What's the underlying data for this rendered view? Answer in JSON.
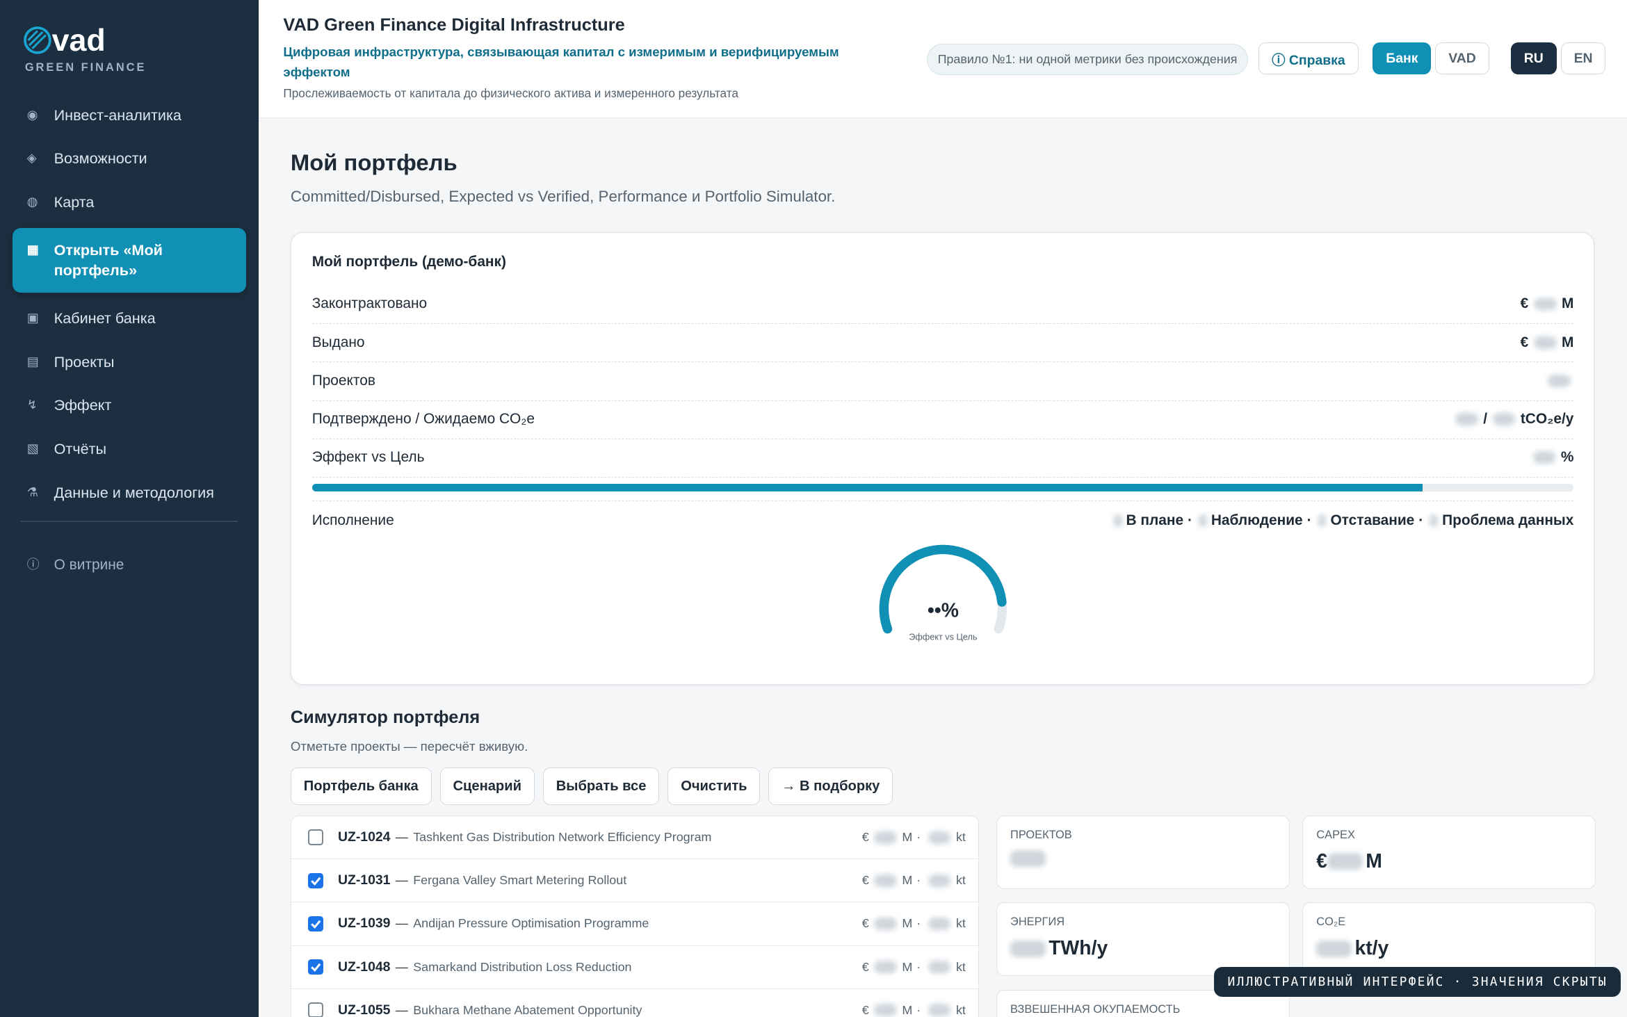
{
  "sidebar": {
    "logo": "vad",
    "tagline": "GREEN FINANCE",
    "nav": [
      {
        "icon": "◉",
        "label": "Инвест-аналитика",
        "active": false
      },
      {
        "icon": "◈",
        "label": "Возможности",
        "active": false
      },
      {
        "icon": "◍",
        "label": "Карта",
        "active": false
      },
      {
        "icon": "▦",
        "label": "Открыть «Мой портфель»",
        "active": true
      },
      {
        "icon": "▣",
        "label": "Кабинет банка",
        "active": false
      },
      {
        "icon": "▤",
        "label": "Проекты",
        "active": false
      },
      {
        "icon": "↯",
        "label": "Эффект",
        "active": false
      },
      {
        "icon": "▧",
        "label": "Отчёты",
        "active": false
      },
      {
        "icon": "⚗",
        "label": "Данные и методология",
        "active": false
      }
    ],
    "about": {
      "icon": "ⓘ",
      "label": "О витрине"
    }
  },
  "header": {
    "title": "VAD Green Finance Digital Infrastructure",
    "subtitle": "Цифровая инфраструктура, связывающая капитал с измеримым и верифицируемым эффектом",
    "caption": "Прослеживаемость от капитала до физического актива и измеренного результата",
    "rule": "Правило №1: ни одной метрики без происхождения",
    "help": "ⓘ Справка",
    "roles": [
      "Банк",
      "VAD"
    ],
    "active_role": 0,
    "languages": [
      "RU",
      "EN"
    ],
    "active_language": 0
  },
  "page": {
    "title": "Мой портфель",
    "subtitle": "Committed/Disbursed, Expected vs Verified, Performance и Portfolio Simulator."
  },
  "portfolio": {
    "title": "Мой портфель (демо-банк)",
    "rows": [
      {
        "label": "Законтрактовано",
        "prefix": "€",
        "suffix": "M"
      },
      {
        "label": "Выдано",
        "prefix": "€",
        "suffix": "M"
      },
      {
        "label": "Проектов"
      },
      {
        "label": "Подтверждено / Ожидаемо CO₂e",
        "separator": "/",
        "suffix": "tCO₂e/y"
      },
      {
        "label": "Эффект vs Цель",
        "suffix": "%"
      }
    ],
    "effect_progress": 88,
    "performance": {
      "label": "Исполнение",
      "statuses": [
        "В плане",
        "Наблюдение",
        "Отставание",
        "Проблема данных"
      ],
      "separator": "·"
    },
    "gauge": {
      "value_label": "••%",
      "caption": "Эффект vs Цель"
    }
  },
  "simulator": {
    "title": "Симулятор портфеля",
    "hint": "Отметьте проекты — пересчёт вживую.",
    "buttons": [
      "Портфель банка",
      "Сценарий",
      "Выбрать все",
      "Очистить",
      "→ В подборку"
    ],
    "dash": "—",
    "units": {
      "currency": "€",
      "money": "M",
      "separator": "·",
      "co2": "kt"
    },
    "projects": [
      {
        "id": "UZ-1024",
        "name": "Tashkent Gas Distribution Network Efficiency Program",
        "checked": false
      },
      {
        "id": "UZ-1031",
        "name": "Fergana Valley Smart Metering Rollout",
        "checked": true
      },
      {
        "id": "UZ-1039",
        "name": "Andijan Pressure Optimisation Programme",
        "checked": true
      },
      {
        "id": "UZ-1048",
        "name": "Samarkand Distribution Loss Reduction",
        "checked": true
      },
      {
        "id": "UZ-1055",
        "name": "Bukhara Methane Abatement Opportunity",
        "checked": false
      }
    ],
    "metrics": [
      {
        "label": "ПРОЕКТОВ"
      },
      {
        "label": "CAPEX",
        "prefix": "€",
        "suffix": "M"
      },
      {
        "label": "ЭНЕРГИЯ",
        "suffix": "TWh/y"
      },
      {
        "label": "CO₂E",
        "suffix": "kt/y"
      },
      {
        "label": "ВЗВЕШЕННАЯ ОКУПАЕМОСТЬ"
      }
    ]
  },
  "badge": "ИЛЛЮСТРАТИВНЫЙ ИНТЕРФЕЙС · ЗНАЧЕНИЯ СКРЫТЫ"
}
